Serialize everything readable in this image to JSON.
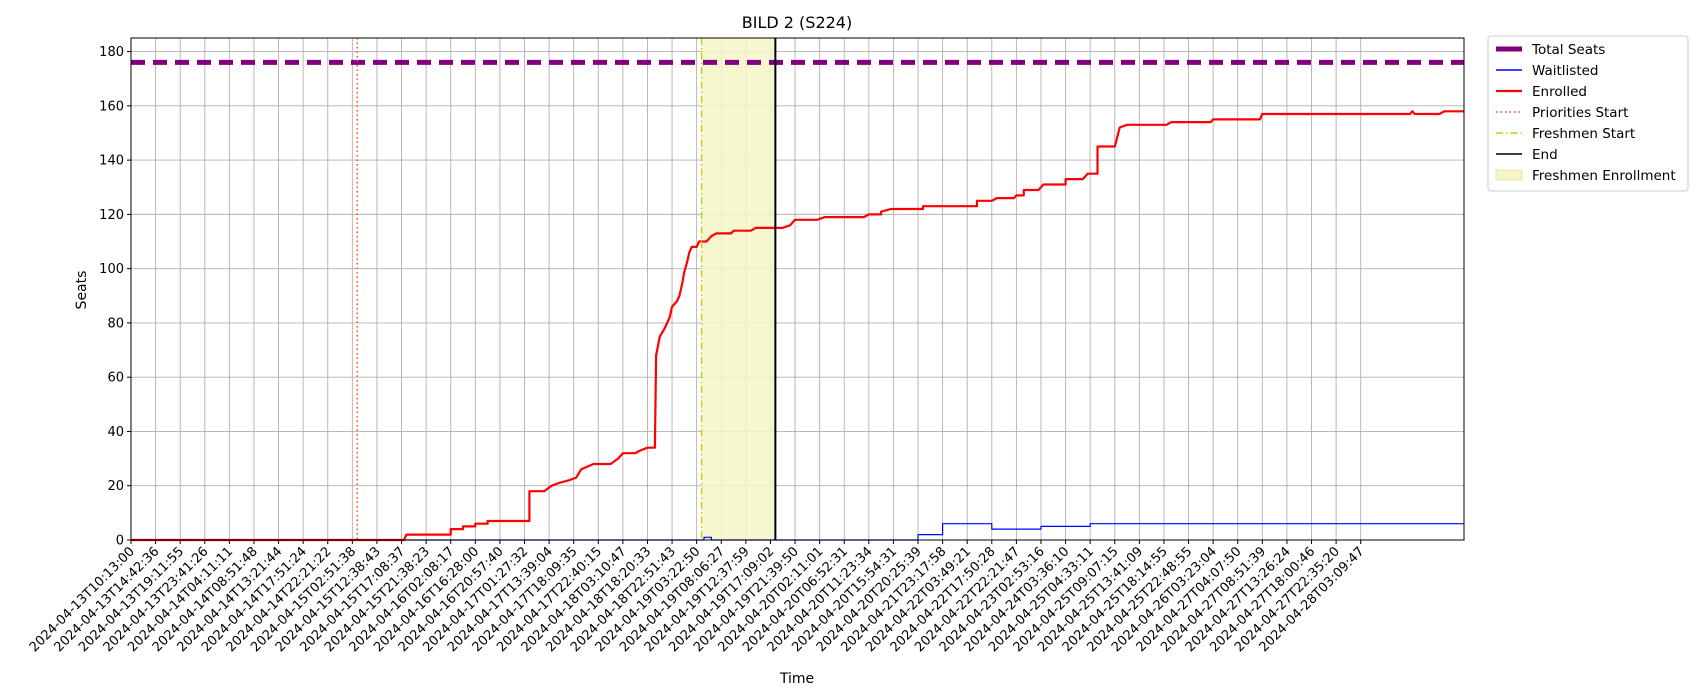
{
  "chart_data": {
    "type": "line",
    "title": "BILD 2 (S224)",
    "xlabel": "Time",
    "ylabel": "Seats",
    "ylim": [
      0,
      185
    ],
    "xlim": [
      0,
      54.2
    ],
    "grid": true,
    "legend_position": "outside-top-right",
    "y_ticks": [
      0,
      20,
      40,
      60,
      80,
      100,
      120,
      140,
      160,
      180
    ],
    "x_tick_labels": [
      "2024-04-13T10:13:00",
      "2024-04-13T14:42:36",
      "2024-04-13T19:11:55",
      "2024-04-13T23:41:26",
      "2024-04-14T04:11:11",
      "2024-04-14T08:51:48",
      "2024-04-14T13:21:44",
      "2024-04-14T17:51:24",
      "2024-04-14T22:21:22",
      "2024-04-15T02:51:38",
      "2024-04-15T12:38:43",
      "2024-04-15T17:08:37",
      "2024-04-15T21:38:23",
      "2024-04-16T02:08:17",
      "2024-04-16T16:28:00",
      "2024-04-16T20:57:40",
      "2024-04-17T01:27:32",
      "2024-04-17T13:39:04",
      "2024-04-17T18:09:35",
      "2024-04-17T22:40:15",
      "2024-04-18T03:10:47",
      "2024-04-18T18:20:33",
      "2024-04-18T22:51:43",
      "2024-04-19T03:22:50",
      "2024-04-19T08:06:27",
      "2024-04-19T12:37:59",
      "2024-04-19T17:09:02",
      "2024-04-19T21:39:50",
      "2024-04-20T02:11:01",
      "2024-04-20T06:52:31",
      "2024-04-20T11:23:34",
      "2024-04-20T15:54:31",
      "2024-04-20T20:25:39",
      "2024-04-21T23:17:58",
      "2024-04-22T03:49:21",
      "2024-04-22T17:50:28",
      "2024-04-22T22:21:47",
      "2024-04-23T02:53:16",
      "2024-04-24T03:36:10",
      "2024-04-25T04:33:11",
      "2024-04-25T09:07:15",
      "2024-04-25T13:41:09",
      "2024-04-25T18:14:55",
      "2024-04-25T22:48:55",
      "2024-04-26T03:23:04",
      "2024-04-27T04:07:50",
      "2024-04-27T08:51:39",
      "2024-04-27T13:26:24",
      "2024-04-27T18:00:46",
      "2024-04-27T22:35:20",
      "2024-04-28T03:09:47"
    ],
    "series": [
      {
        "name": "Total Seats",
        "style": "dashed",
        "color": "#800080",
        "points": [
          [
            0,
            176
          ],
          [
            54.2,
            176
          ]
        ]
      },
      {
        "name": "Waitlisted",
        "style": "solid",
        "color": "#0000ff",
        "points": [
          [
            0,
            0
          ],
          [
            23.3,
            0
          ],
          [
            23.3,
            1
          ],
          [
            23.6,
            1
          ],
          [
            23.6,
            0
          ],
          [
            32.0,
            0
          ],
          [
            32.0,
            2
          ],
          [
            33.0,
            2
          ],
          [
            33.0,
            6
          ],
          [
            35.0,
            6
          ],
          [
            35.0,
            4
          ],
          [
            37.0,
            4
          ],
          [
            37.0,
            5
          ],
          [
            39.0,
            5
          ],
          [
            39.0,
            6
          ],
          [
            54.2,
            6
          ]
        ]
      },
      {
        "name": "Enrolled",
        "style": "solid",
        "color": "#ff0000",
        "points": [
          [
            0,
            0
          ],
          [
            11.1,
            0
          ],
          [
            11.2,
            2
          ],
          [
            13.0,
            2
          ],
          [
            13.0,
            4
          ],
          [
            13.5,
            4
          ],
          [
            13.5,
            5
          ],
          [
            14.0,
            5
          ],
          [
            14.0,
            6
          ],
          [
            14.5,
            6
          ],
          [
            14.5,
            7
          ],
          [
            16.2,
            7
          ],
          [
            16.2,
            18
          ],
          [
            16.8,
            18
          ],
          [
            17.1,
            20
          ],
          [
            17.4,
            21
          ],
          [
            17.8,
            22
          ],
          [
            18.1,
            23
          ],
          [
            18.3,
            26
          ],
          [
            18.8,
            28
          ],
          [
            19.5,
            28
          ],
          [
            19.8,
            30
          ],
          [
            20.0,
            32
          ],
          [
            20.5,
            32
          ],
          [
            20.7,
            33
          ],
          [
            21.0,
            34
          ],
          [
            21.3,
            34
          ],
          [
            21.35,
            68
          ],
          [
            21.5,
            75
          ],
          [
            21.7,
            78
          ],
          [
            21.9,
            82
          ],
          [
            22.0,
            86
          ],
          [
            22.2,
            88
          ],
          [
            22.3,
            90
          ],
          [
            22.4,
            94
          ],
          [
            22.5,
            99
          ],
          [
            22.6,
            102
          ],
          [
            22.7,
            106
          ],
          [
            22.8,
            108
          ],
          [
            23.0,
            108
          ],
          [
            23.1,
            110
          ],
          [
            23.4,
            110
          ],
          [
            23.6,
            112
          ],
          [
            23.8,
            113
          ],
          [
            24.4,
            113
          ],
          [
            24.5,
            114
          ],
          [
            25.2,
            114
          ],
          [
            25.4,
            115
          ],
          [
            26.5,
            115
          ],
          [
            26.8,
            116
          ],
          [
            27.0,
            118
          ],
          [
            27.9,
            118
          ],
          [
            28.2,
            119
          ],
          [
            29.8,
            119
          ],
          [
            30.0,
            120
          ],
          [
            30.5,
            120
          ],
          [
            30.5,
            121
          ],
          [
            30.9,
            122
          ],
          [
            32.2,
            122
          ],
          [
            32.2,
            123
          ],
          [
            34.4,
            123
          ],
          [
            34.4,
            125
          ],
          [
            35.0,
            125
          ],
          [
            35.2,
            126
          ],
          [
            35.9,
            126
          ],
          [
            36.0,
            127
          ],
          [
            36.3,
            127
          ],
          [
            36.3,
            129
          ],
          [
            36.9,
            129
          ],
          [
            37.1,
            131
          ],
          [
            38.0,
            131
          ],
          [
            38.0,
            133
          ],
          [
            38.7,
            133
          ],
          [
            38.9,
            135
          ],
          [
            39.3,
            135
          ],
          [
            39.3,
            145
          ],
          [
            40.0,
            145
          ],
          [
            40.2,
            152
          ],
          [
            40.5,
            153
          ],
          [
            42.1,
            153
          ],
          [
            42.3,
            154
          ],
          [
            43.9,
            154
          ],
          [
            44.0,
            155
          ],
          [
            45.9,
            155
          ],
          [
            46.0,
            157
          ],
          [
            52.0,
            157
          ],
          [
            52.1,
            158
          ],
          [
            52.2,
            157
          ],
          [
            53.2,
            157
          ],
          [
            53.4,
            158
          ],
          [
            54.2,
            158
          ]
        ]
      }
    ],
    "vertical_lines": [
      {
        "name": "Priorities Start",
        "x": 9.2,
        "color": "#ff4500",
        "style": "dotted"
      },
      {
        "name": "Freshmen Start",
        "x": 23.2,
        "color": "#cccc00",
        "style": "dashdot"
      },
      {
        "name": "End",
        "x": 26.2,
        "color": "#000000",
        "style": "solid"
      }
    ],
    "shaded_regions": [
      {
        "name": "Freshmen Enrollment",
        "x_start": 23.2,
        "x_end": 26.2,
        "color": "#f5f5c8"
      }
    ],
    "legend": [
      "Total Seats",
      "Waitlisted",
      "Enrolled",
      "Priorities Start",
      "Freshmen Start",
      "End",
      "Freshmen Enrollment"
    ]
  }
}
